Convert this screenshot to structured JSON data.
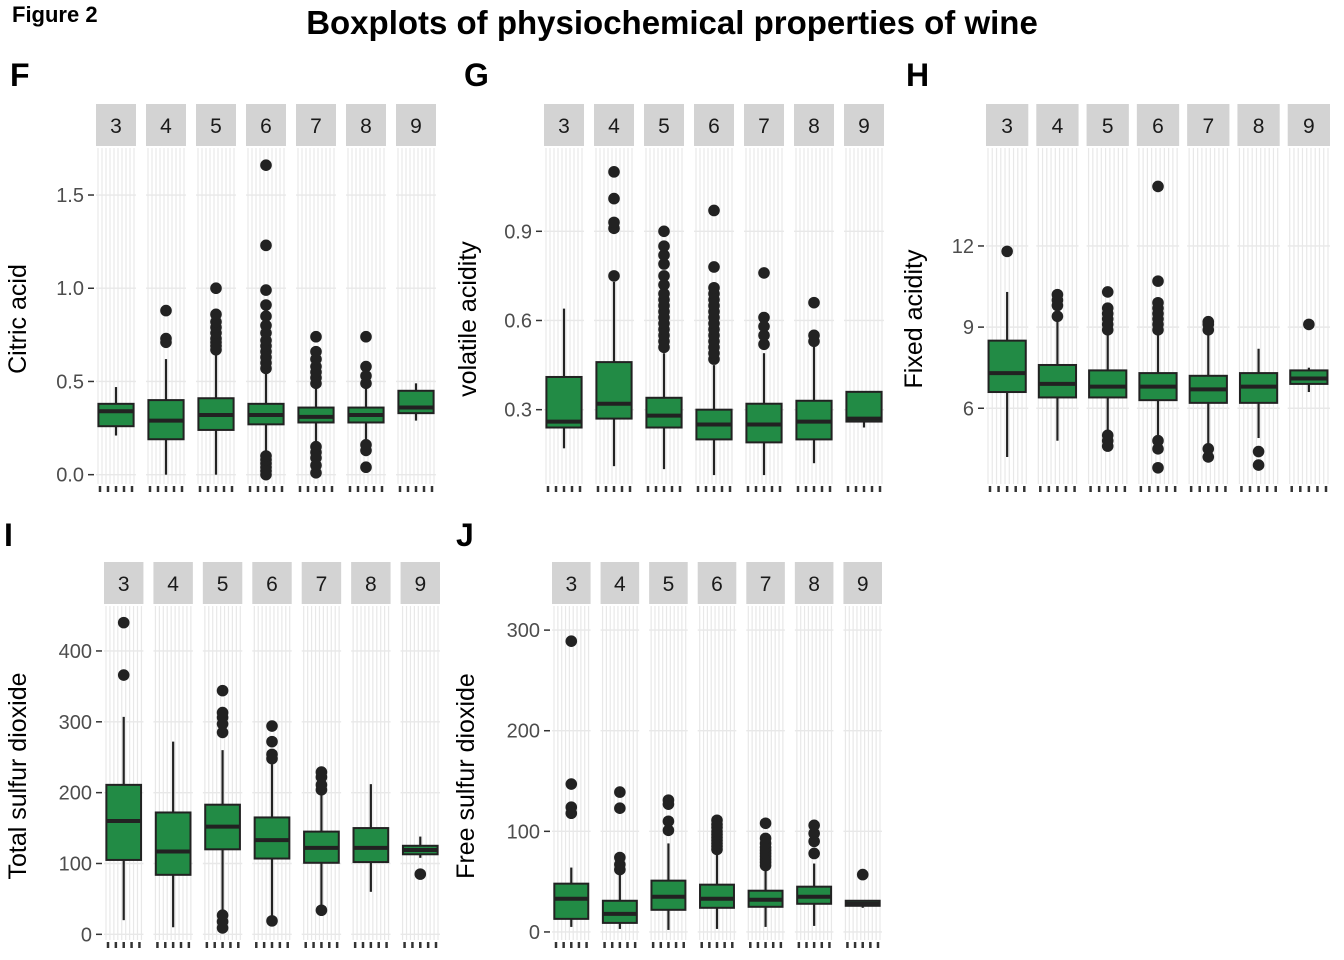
{
  "figure": {
    "label": "Figure 2",
    "title": "Boxplots of physiochemical properties of wine"
  },
  "colors": {
    "box_fill": "#228B45",
    "line": "#222222",
    "strip": "#d3d3d3",
    "grid": "#e8e8e8"
  },
  "chart_data": [
    {
      "type": "boxplot",
      "panel_label": "F",
      "ylabel": "Citric acid",
      "categories": [
        "3",
        "4",
        "5",
        "6",
        "7",
        "8",
        "9"
      ],
      "ylim": [
        -0.05,
        1.72
      ],
      "yticks": [
        0,
        0.5,
        1,
        1.5
      ],
      "ytick_labels": [
        "0.0",
        "0.5",
        "1.0",
        "1.5"
      ],
      "boxes": [
        {
          "q1": 0.26,
          "median": 0.34,
          "q3": 0.38,
          "whisker_low": 0.21,
          "whisker_high": 0.47,
          "outliers": []
        },
        {
          "q1": 0.19,
          "median": 0.29,
          "q3": 0.4,
          "whisker_low": 0.0,
          "whisker_high": 0.62,
          "outliers": [
            0.71,
            0.73,
            0.88
          ]
        },
        {
          "q1": 0.24,
          "median": 0.32,
          "q3": 0.41,
          "whisker_low": 0.0,
          "whisker_high": 0.65,
          "outliers": [
            0.67,
            0.69,
            0.71,
            0.73,
            0.76,
            0.79,
            0.82,
            0.86,
            1.0
          ]
        },
        {
          "q1": 0.27,
          "median": 0.32,
          "q3": 0.38,
          "whisker_low": 0.11,
          "whisker_high": 0.55,
          "outliers": [
            0.0,
            0.02,
            0.04,
            0.06,
            0.08,
            0.1,
            0.57,
            0.6,
            0.63,
            0.66,
            0.69,
            0.72,
            0.76,
            0.8,
            0.85,
            0.91,
            0.99,
            1.23,
            1.66
          ]
        },
        {
          "q1": 0.28,
          "median": 0.31,
          "q3": 0.36,
          "whisker_low": 0.18,
          "whisker_high": 0.47,
          "outliers": [
            0.01,
            0.05,
            0.09,
            0.12,
            0.15,
            0.49,
            0.52,
            0.55,
            0.58,
            0.62,
            0.66,
            0.74
          ]
        },
        {
          "q1": 0.28,
          "median": 0.32,
          "q3": 0.36,
          "whisker_low": 0.19,
          "whisker_high": 0.46,
          "outliers": [
            0.04,
            0.13,
            0.16,
            0.49,
            0.53,
            0.58,
            0.74
          ]
        },
        {
          "q1": 0.33,
          "median": 0.36,
          "q3": 0.45,
          "whisker_low": 0.29,
          "whisker_high": 0.49,
          "outliers": []
        }
      ]
    },
    {
      "type": "boxplot",
      "panel_label": "G",
      "ylabel": "volatile acidity",
      "categories": [
        "3",
        "4",
        "5",
        "6",
        "7",
        "8",
        "9"
      ],
      "ylim": [
        0.05,
        1.16
      ],
      "yticks": [
        0.3,
        0.6,
        0.9
      ],
      "ytick_labels": [
        "0.3",
        "0.6",
        "0.9"
      ],
      "boxes": [
        {
          "q1": 0.24,
          "median": 0.26,
          "q3": 0.41,
          "whisker_low": 0.17,
          "whisker_high": 0.64,
          "outliers": []
        },
        {
          "q1": 0.27,
          "median": 0.32,
          "q3": 0.46,
          "whisker_low": 0.11,
          "whisker_high": 0.73,
          "outliers": [
            0.75,
            0.91,
            0.93,
            1.01,
            1.1
          ]
        },
        {
          "q1": 0.24,
          "median": 0.28,
          "q3": 0.34,
          "whisker_low": 0.1,
          "whisker_high": 0.49,
          "outliers": [
            0.51,
            0.53,
            0.55,
            0.57,
            0.59,
            0.61,
            0.63,
            0.65,
            0.67,
            0.69,
            0.72,
            0.75,
            0.79,
            0.82,
            0.85,
            0.9
          ]
        },
        {
          "q1": 0.2,
          "median": 0.25,
          "q3": 0.3,
          "whisker_low": 0.08,
          "whisker_high": 0.45,
          "outliers": [
            0.47,
            0.49,
            0.51,
            0.53,
            0.55,
            0.57,
            0.59,
            0.61,
            0.63,
            0.65,
            0.67,
            0.69,
            0.71,
            0.78,
            0.97
          ]
        },
        {
          "q1": 0.19,
          "median": 0.25,
          "q3": 0.32,
          "whisker_low": 0.08,
          "whisker_high": 0.49,
          "outliers": [
            0.52,
            0.55,
            0.58,
            0.61,
            0.76
          ]
        },
        {
          "q1": 0.2,
          "median": 0.26,
          "q3": 0.33,
          "whisker_low": 0.12,
          "whisker_high": 0.52,
          "outliers": [
            0.53,
            0.55,
            0.66
          ]
        },
        {
          "q1": 0.26,
          "median": 0.27,
          "q3": 0.36,
          "whisker_low": 0.24,
          "whisker_high": 0.36,
          "outliers": []
        }
      ]
    },
    {
      "type": "boxplot",
      "panel_label": "H",
      "ylabel": "Fixed acidity",
      "categories": [
        "3",
        "4",
        "5",
        "6",
        "7",
        "8",
        "9"
      ],
      "ylim": [
        3.2,
        15.4
      ],
      "yticks": [
        6,
        9,
        12
      ],
      "ytick_labels": [
        "6",
        "9",
        "12"
      ],
      "boxes": [
        {
          "q1": 6.6,
          "median": 7.3,
          "q3": 8.5,
          "whisker_low": 4.2,
          "whisker_high": 10.3,
          "outliers": [
            11.8
          ]
        },
        {
          "q1": 6.4,
          "median": 6.9,
          "q3": 7.6,
          "whisker_low": 4.8,
          "whisker_high": 9.2,
          "outliers": [
            9.4,
            9.8,
            10.0,
            10.2
          ]
        },
        {
          "q1": 6.4,
          "median": 6.8,
          "q3": 7.4,
          "whisker_low": 5.0,
          "whisker_high": 8.7,
          "outliers": [
            4.6,
            4.8,
            5.0,
            8.9,
            9.1,
            9.3,
            9.5,
            9.7,
            10.3
          ]
        },
        {
          "q1": 6.3,
          "median": 6.8,
          "q3": 7.3,
          "whisker_low": 5.0,
          "whisker_high": 8.8,
          "outliers": [
            3.8,
            4.5,
            4.8,
            8.9,
            9.1,
            9.3,
            9.5,
            9.7,
            9.9,
            10.7,
            14.2
          ]
        },
        {
          "q1": 6.2,
          "median": 6.7,
          "q3": 7.2,
          "whisker_low": 4.6,
          "whisker_high": 8.7,
          "outliers": [
            4.2,
            4.5,
            8.9,
            9.1,
            9.2
          ]
        },
        {
          "q1": 6.2,
          "median": 6.8,
          "q3": 7.3,
          "whisker_low": 4.9,
          "whisker_high": 8.2,
          "outliers": [
            3.9,
            4.4
          ]
        },
        {
          "q1": 6.9,
          "median": 7.1,
          "q3": 7.4,
          "whisker_low": 6.6,
          "whisker_high": 7.5,
          "outliers": [
            9.1
          ]
        }
      ]
    },
    {
      "type": "boxplot",
      "panel_label": "I",
      "ylabel": "Total sulfur dioxide",
      "categories": [
        "3",
        "4",
        "5",
        "6",
        "7",
        "8",
        "9"
      ],
      "ylim": [
        -8,
        455
      ],
      "yticks": [
        0,
        100,
        200,
        300,
        400
      ],
      "ytick_labels": [
        "0",
        "100",
        "200",
        "300",
        "400"
      ],
      "boxes": [
        {
          "q1": 105,
          "median": 160,
          "q3": 211,
          "whisker_low": 20,
          "whisker_high": 307,
          "outliers": [
            366,
            440
          ]
        },
        {
          "q1": 84,
          "median": 117,
          "q3": 172,
          "whisker_low": 10,
          "whisker_high": 272,
          "outliers": []
        },
        {
          "q1": 120,
          "median": 152,
          "q3": 183,
          "whisker_low": 30,
          "whisker_high": 260,
          "outliers": [
            9,
            18,
            27,
            285,
            297,
            306,
            313,
            344
          ]
        },
        {
          "q1": 107,
          "median": 133,
          "q3": 165,
          "whisker_low": 25,
          "whisker_high": 240,
          "outliers": [
            19,
            248,
            254,
            272,
            294
          ]
        },
        {
          "q1": 101,
          "median": 122,
          "q3": 145,
          "whisker_low": 40,
          "whisker_high": 200,
          "outliers": [
            34,
            204,
            211,
            222,
            229
          ]
        },
        {
          "q1": 102,
          "median": 122,
          "q3": 150,
          "whisker_low": 60,
          "whisker_high": 212,
          "outliers": []
        },
        {
          "q1": 113,
          "median": 119,
          "q3": 125,
          "whisker_low": 108,
          "whisker_high": 138,
          "outliers": [
            85
          ]
        }
      ]
    },
    {
      "type": "boxplot",
      "panel_label": "J",
      "ylabel": "Free sulfur dioxide",
      "categories": [
        "3",
        "4",
        "5",
        "6",
        "7",
        "8",
        "9"
      ],
      "ylim": [
        -8,
        318
      ],
      "yticks": [
        0,
        100,
        200,
        300
      ],
      "ytick_labels": [
        "0",
        "100",
        "200",
        "300"
      ],
      "boxes": [
        {
          "q1": 13,
          "median": 33,
          "q3": 48,
          "whisker_low": 5,
          "whisker_high": 64,
          "outliers": [
            118,
            124,
            147,
            289
          ]
        },
        {
          "q1": 9,
          "median": 18,
          "q3": 31,
          "whisker_low": 3,
          "whisker_high": 60,
          "outliers": [
            62,
            67,
            74,
            123,
            139
          ]
        },
        {
          "q1": 22,
          "median": 35,
          "q3": 51,
          "whisker_low": 2,
          "whisker_high": 88,
          "outliers": [
            101,
            110,
            127,
            131
          ]
        },
        {
          "q1": 24,
          "median": 33,
          "q3": 47,
          "whisker_low": 3,
          "whisker_high": 78,
          "outliers": [
            82,
            85,
            88,
            91,
            94,
            97,
            100,
            104,
            107,
            111
          ]
        },
        {
          "q1": 25,
          "median": 32,
          "q3": 41,
          "whisker_low": 5,
          "whisker_high": 64,
          "outliers": [
            66,
            69,
            72,
            75,
            78,
            81,
            84,
            88,
            93,
            108
          ]
        },
        {
          "q1": 28,
          "median": 35,
          "q3": 45,
          "whisker_low": 6,
          "whisker_high": 68,
          "outliers": [
            78,
            90,
            98,
            106
          ]
        },
        {
          "q1": 26,
          "median": 28,
          "q3": 31,
          "whisker_low": 24,
          "whisker_high": 31,
          "outliers": [
            57
          ]
        }
      ]
    }
  ]
}
